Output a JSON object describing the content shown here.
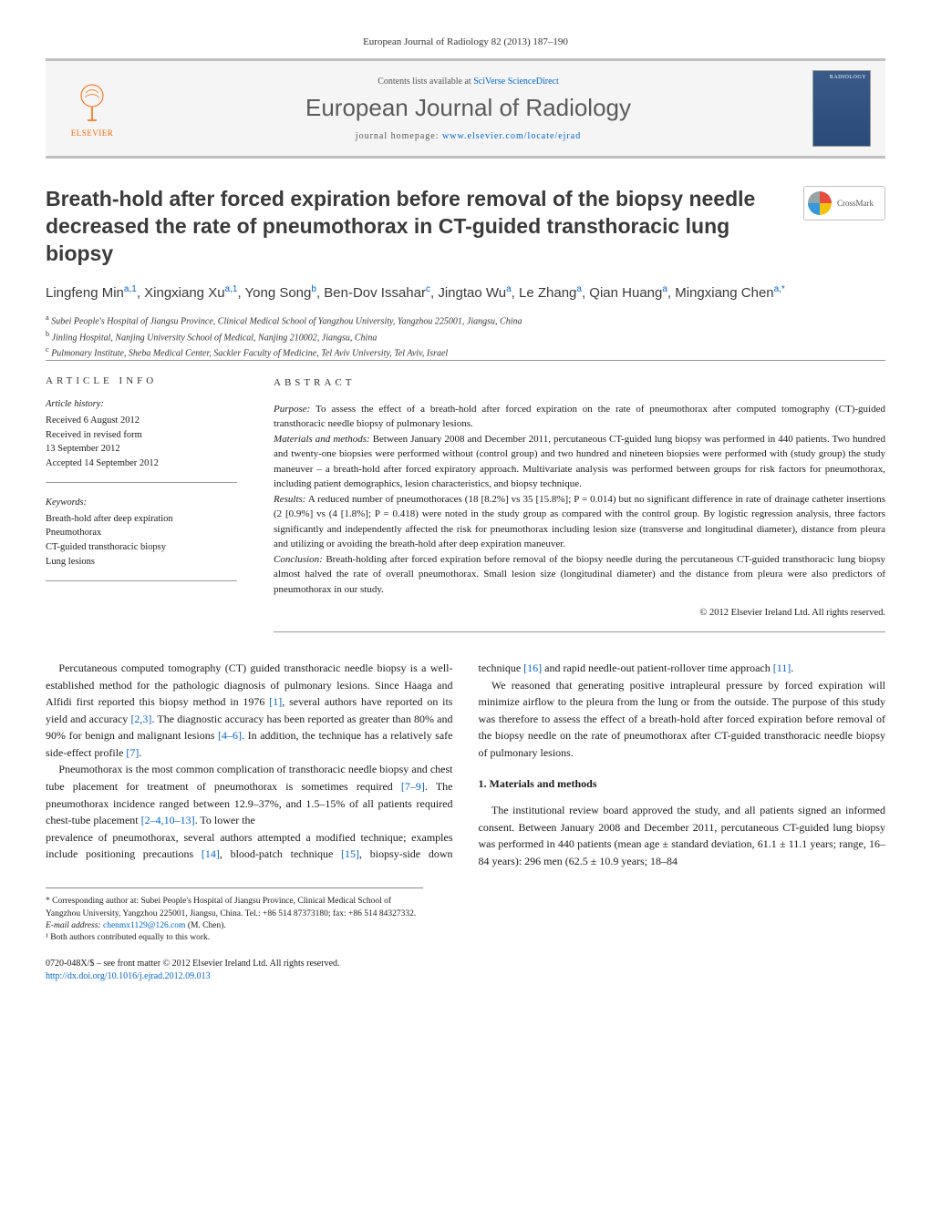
{
  "journal_ref": "European Journal of Radiology 82 (2013) 187–190",
  "header": {
    "contents_prefix": "Contents lists available at ",
    "contents_link": "SciVerse ScienceDirect",
    "journal_name": "European Journal of Radiology",
    "homepage_prefix": "journal homepage: ",
    "homepage_link": "www.elsevier.com/locate/ejrad",
    "publisher": "ELSEVIER",
    "cover_text": "RADIOLOGY"
  },
  "crossmark": "CrossMark",
  "title": "Breath-hold after forced expiration before removal of the biopsy needle decreased the rate of pneumothorax in CT-guided transthoracic lung biopsy",
  "authors_html": "Lingfeng Min<sup>a,1</sup>, Xingxiang Xu<sup>a,1</sup>, Yong Song<sup>b</sup>, Ben-Dov Issahar<sup>c</sup>, Jingtao Wu<sup>a</sup>, Le Zhang<sup>a</sup>, Qian Huang<sup>a</sup>, Mingxiang Chen<sup>a,*</sup>",
  "affiliations": {
    "a": "Subei People's Hospital of Jiangsu Province, Clinical Medical School of Yangzhou University, Yangzhou 225001, Jiangsu, China",
    "b": "Jinling Hospital, Nanjing University School of Medical, Nanjing 210002, Jiangsu, China",
    "c": "Pulmonary Institute, Sheba Medical Center, Sackler Faculty of Medicine, Tel Aviv University, Tel Aviv, Israel"
  },
  "article_info": {
    "heading": "article info",
    "history_label": "Article history:",
    "history": [
      "Received 6 August 2012",
      "Received in revised form",
      "13 September 2012",
      "Accepted 14 September 2012"
    ],
    "keywords_label": "Keywords:",
    "keywords": [
      "Breath-hold after deep expiration",
      "Pneumothorax",
      "CT-guided transthoracic biopsy",
      "Lung lesions"
    ]
  },
  "abstract": {
    "heading": "abstract",
    "purpose_label": "Purpose:",
    "purpose": "To assess the effect of a breath-hold after forced expiration on the rate of pneumothorax after computed tomography (CT)-guided transthoracic needle biopsy of pulmonary lesions.",
    "methods_label": "Materials and methods:",
    "methods": "Between January 2008 and December 2011, percutaneous CT-guided lung biopsy was performed in 440 patients. Two hundred and twenty-one biopsies were performed without (control group) and two hundred and nineteen biopsies were performed with (study group) the study maneuver – a breath-hold after forced expiratory approach. Multivariate analysis was performed between groups for risk factors for pneumothorax, including patient demographics, lesion characteristics, and biopsy technique.",
    "results_label": "Results:",
    "results": "A reduced number of pneumothoraces (18 [8.2%] vs 35 [15.8%]; P = 0.014) but no significant difference in rate of drainage catheter insertions (2 [0.9%] vs (4 [1.8%]; P = 0.418) were noted in the study group as compared with the control group. By logistic regression analysis, three factors significantly and independently affected the risk for pneumothorax including lesion size (transverse and longitudinal diameter), distance from pleura and utilizing or avoiding the breath-hold after deep expiration maneuver.",
    "conclusion_label": "Conclusion:",
    "conclusion": "Breath-holding after forced expiration before removal of the biopsy needle during the percutaneous CT-guided transthoracic lung biopsy almost halved the rate of overall pneumothorax. Small lesion size (longitudinal diameter) and the distance from pleura were also predictors of pneumothorax in our study.",
    "copyright": "© 2012 Elsevier Ireland Ltd. All rights reserved."
  },
  "body": {
    "p1": "Percutaneous computed tomography (CT) guided transthoracic needle biopsy is a well-established method for the pathologic diagnosis of pulmonary lesions. Since Haaga and Alfidi first reported this biopsy method in 1976 [1], several authors have reported on its yield and accuracy [2,3]. The diagnostic accuracy has been reported as greater than 80% and 90% for benign and malignant lesions [4–6]. In addition, the technique has a relatively safe side-effect profile [7].",
    "p2": "Pneumothorax is the most common complication of transthoracic needle biopsy and chest tube placement for treatment of pneumothorax is sometimes required [7–9]. The pneumothorax incidence ranged between 12.9–37%, and 1.5–15% of all patients required chest-tube placement [2–4,10–13]. To lower the",
    "p3": "prevalence of pneumothorax, several authors attempted a modified technique; examples include positioning precautions [14], blood-patch technique [15], biopsy-side down technique [16] and rapid needle-out patient-rollover time approach [11].",
    "p4": "We reasoned that generating positive intrapleural pressure by forced expiration will minimize airflow to the pleura from the lung or from the outside. The purpose of this study was therefore to assess the effect of a breath-hold after forced expiration before removal of the biopsy needle on the rate of pneumothorax after CT-guided transthoracic needle biopsy of pulmonary lesions.",
    "section1_heading": "1. Materials and methods",
    "p5": "The institutional review board approved the study, and all patients signed an informed consent. Between January 2008 and December 2011, percutaneous CT-guided lung biopsy was performed in 440 patients (mean age ± standard deviation, 61.1 ± 11.1 years; range, 16–84 years): 296 men (62.5 ± 10.9 years; 18–84"
  },
  "footnotes": {
    "corr": "* Corresponding author at: Subei People's Hospital of Jiangsu Province, Clinical Medical School of Yangzhou University, Yangzhou 225001, Jiangsu, China. Tel.: +86 514 87373180; fax: +86 514 84327332.",
    "email_label": "E-mail address:",
    "email": "chenmx1129@126.com",
    "email_suffix": "(M. Chen).",
    "note1": "¹ Both authors contributed equally to this work."
  },
  "footer": {
    "line1": "0720-048X/$ – see front matter © 2012 Elsevier Ireland Ltd. All rights reserved.",
    "doi": "http://dx.doi.org/10.1016/j.ejrad.2012.09.013"
  },
  "colors": {
    "link": "#0066cc",
    "elsevier_orange": "#ff6600",
    "heading_gray": "#3a3a3a",
    "border_gray": "#999999"
  }
}
